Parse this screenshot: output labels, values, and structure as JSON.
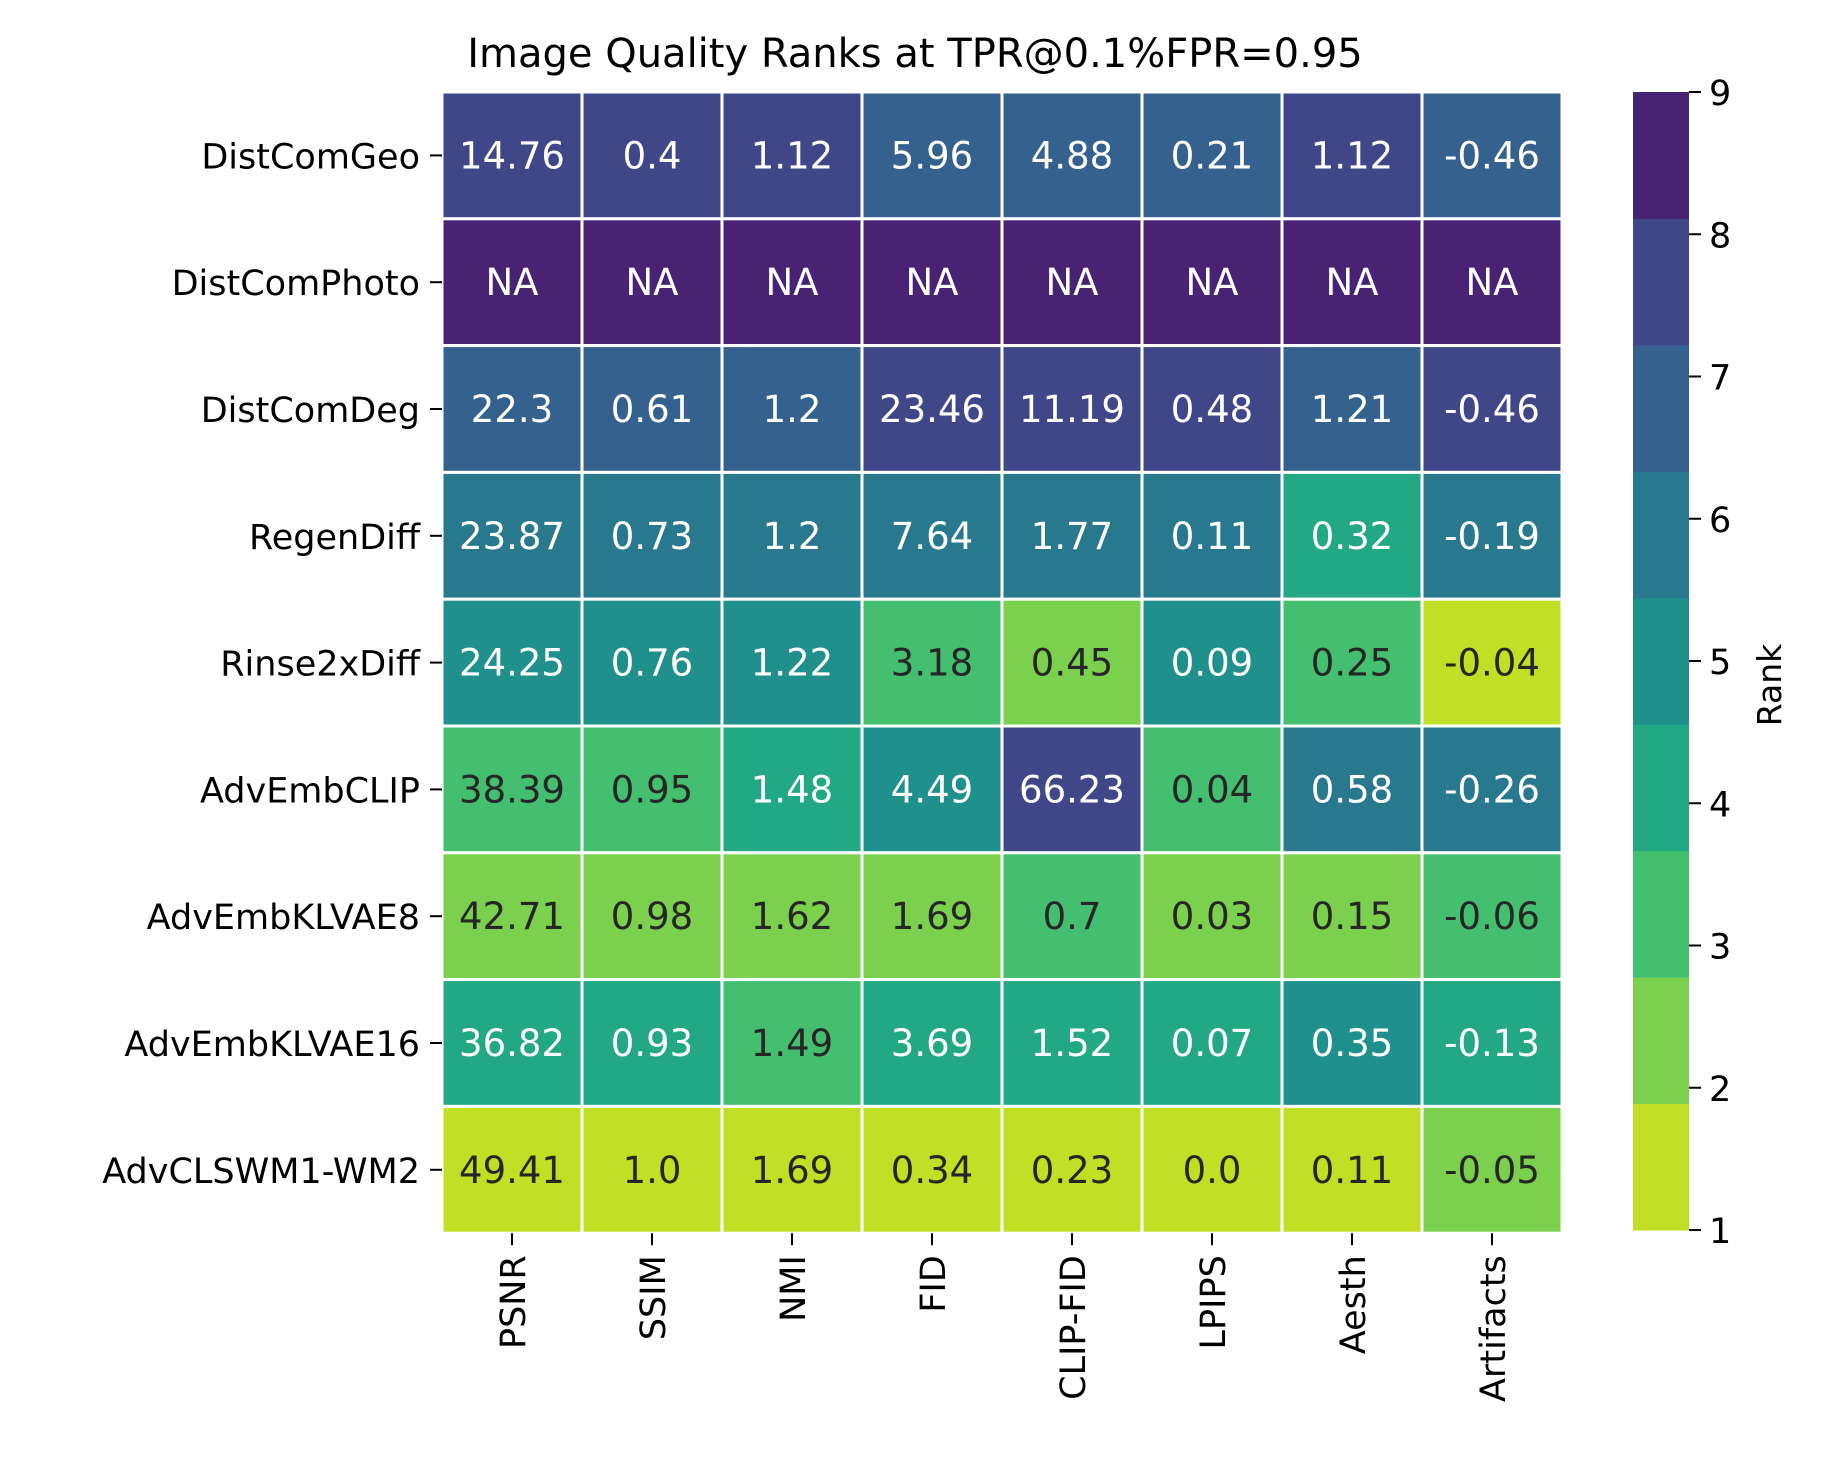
{
  "chart_data": {
    "type": "heatmap",
    "title": "Image Quality Ranks at TPR@0.1%FPR=0.95",
    "rows": [
      "DistComGeo",
      "DistComPhoto",
      "DistComDeg",
      "RegenDiff",
      "Rinse2xDiff",
      "AdvEmbCLIP",
      "AdvEmbKLVAE8",
      "AdvEmbKLVAE16",
      "AdvCLSWM1-WM2"
    ],
    "columns": [
      "PSNR",
      "SSIM",
      "NMI",
      "FID",
      "CLIP-FID",
      "LPIPS",
      "Aesth",
      "Artifacts"
    ],
    "cell_labels": [
      [
        "14.76",
        "0.4",
        "1.12",
        "5.96",
        "4.88",
        "0.21",
        "1.12",
        "-0.46"
      ],
      [
        "NA",
        "NA",
        "NA",
        "NA",
        "NA",
        "NA",
        "NA",
        "NA"
      ],
      [
        "22.3",
        "0.61",
        "1.2",
        "23.46",
        "11.19",
        "0.48",
        "1.21",
        "-0.46"
      ],
      [
        "23.87",
        "0.73",
        "1.2",
        "7.64",
        "1.77",
        "0.11",
        "0.32",
        "-0.19"
      ],
      [
        "24.25",
        "0.76",
        "1.22",
        "3.18",
        "0.45",
        "0.09",
        "0.25",
        "-0.04"
      ],
      [
        "38.39",
        "0.95",
        "1.48",
        "4.49",
        "66.23",
        "0.04",
        "0.58",
        "-0.26"
      ],
      [
        "42.71",
        "0.98",
        "1.62",
        "1.69",
        "0.7",
        "0.03",
        "0.15",
        "-0.06"
      ],
      [
        "36.82",
        "0.93",
        "1.49",
        "3.69",
        "1.52",
        "0.07",
        "0.35",
        "-0.13"
      ],
      [
        "49.41",
        "1.0",
        "1.69",
        "0.34",
        "0.23",
        "0.0",
        "0.11",
        "-0.05"
      ]
    ],
    "ranks": [
      [
        8,
        8,
        8,
        7,
        7,
        7,
        8,
        7
      ],
      [
        9,
        9,
        9,
        9,
        9,
        9,
        9,
        9
      ],
      [
        7,
        7,
        7,
        8,
        8,
        8,
        7,
        8
      ],
      [
        6,
        6,
        6,
        6,
        6,
        6,
        4,
        6
      ],
      [
        5,
        5,
        5,
        3,
        2,
        5,
        3,
        1
      ],
      [
        3,
        3,
        4,
        5,
        8,
        3,
        6,
        6
      ],
      [
        2,
        2,
        2,
        2,
        3,
        2,
        2,
        3
      ],
      [
        4,
        4,
        3,
        4,
        4,
        4,
        5,
        4
      ],
      [
        1,
        1,
        1,
        1,
        1,
        1,
        1,
        2
      ]
    ],
    "colorbar": {
      "label": "Rank",
      "range": [
        1,
        9
      ],
      "ticks": [
        "1",
        "2",
        "3",
        "4",
        "5",
        "6",
        "7",
        "8",
        "9"
      ],
      "colors": [
        "#c1df24",
        "#7bd04d",
        "#43bf6f",
        "#23a884",
        "#20908c",
        "#28798e",
        "#34618d",
        "#3f4788",
        "#482374"
      ]
    },
    "legend_placement": "right",
    "grid": false
  }
}
